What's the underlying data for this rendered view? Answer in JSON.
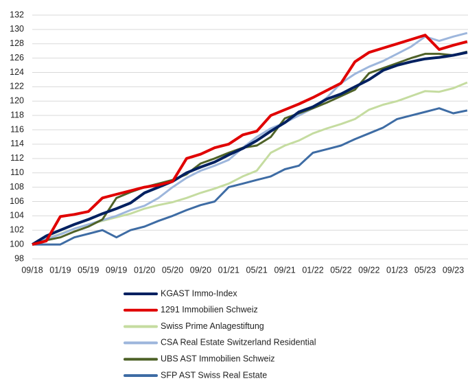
{
  "chart_data": {
    "type": "line",
    "categories": [
      "09/18",
      null,
      "01/19",
      null,
      "05/19",
      null,
      "09/19",
      null,
      "01/20",
      null,
      "05/20",
      null,
      "09/20",
      null,
      "01/21",
      null,
      "05/21",
      null,
      "09/21",
      null,
      "01/22",
      null,
      "05/22",
      null,
      "09/22",
      null,
      "01/23",
      null,
      "05/23",
      null,
      "09/23",
      null
    ],
    "ylim": [
      98,
      132
    ],
    "yticks": [
      98,
      100,
      102,
      104,
      106,
      108,
      110,
      112,
      114,
      116,
      118,
      120,
      122,
      124,
      126,
      128,
      130,
      132
    ],
    "grid": true,
    "legend": "bottom",
    "series": [
      {
        "name": "KGAST Immo-Index",
        "color": "#002060",
        "values": [
          100,
          101.2,
          102,
          102.8,
          103.5,
          104.3,
          105,
          105.8,
          107.2,
          108,
          108.8,
          110,
          110.8,
          111.5,
          112.5,
          113.4,
          114.5,
          115.8,
          117,
          118.5,
          119.2,
          120.3,
          121,
          122,
          123,
          124.3,
          125,
          125.5,
          125.9,
          126.1,
          126.4,
          126.8
        ]
      },
      {
        "name": "1291 Immobilien Schweiz",
        "color": "#e00000",
        "values": [
          100,
          100.5,
          103.9,
          104.2,
          104.6,
          106.5,
          107,
          107.5,
          108,
          108.3,
          108.8,
          112,
          112.6,
          113.5,
          114,
          115.3,
          115.8,
          118,
          118.8,
          119.6,
          120.5,
          121.5,
          122.5,
          125.5,
          126.8,
          127.4,
          128,
          128.6,
          129.2,
          127.2,
          127.8,
          128.3
        ]
      },
      {
        "name": "Swiss Prime Anlagestiftung",
        "color": "#c5dca0",
        "values": [
          100,
          100.8,
          101.5,
          102.2,
          102.8,
          103.3,
          103.8,
          104.3,
          105,
          105.5,
          105.9,
          106.5,
          107.2,
          107.8,
          108.5,
          109.5,
          110.3,
          112.8,
          113.8,
          114.5,
          115.5,
          116.2,
          116.8,
          117.5,
          118.8,
          119.5,
          120,
          120.7,
          121.4,
          121.3,
          121.8,
          122.6
        ]
      },
      {
        "name": "CSA Real Estate Switzerland Residential",
        "color": "#9db6dc",
        "values": [
          100,
          100.8,
          101.4,
          102.2,
          102.8,
          103.4,
          104,
          104.8,
          105.4,
          106.5,
          108,
          109.3,
          110.3,
          111,
          111.8,
          113.5,
          115,
          116.2,
          117,
          118,
          119,
          120.5,
          122.5,
          123.8,
          124.8,
          125.6,
          126.6,
          127.6,
          129,
          128.4,
          129,
          129.5
        ]
      },
      {
        "name": "UBS AST Immobilien Schweiz",
        "color": "#4f6228",
        "values": [
          100,
          100.6,
          101,
          101.8,
          102.5,
          103.5,
          106.5,
          107.3,
          108,
          108.5,
          109,
          109.8,
          111.3,
          112,
          112.8,
          113.5,
          113.8,
          115,
          117.6,
          118.3,
          119,
          119.8,
          120.7,
          121.6,
          123.9,
          124.6,
          125.3,
          126,
          126.6,
          126.6,
          126.4,
          126.9
        ]
      },
      {
        "name": "SFP AST Swiss Real Estate",
        "color": "#3e6ca4",
        "values": [
          100,
          100,
          100,
          101,
          101.5,
          102,
          101,
          102,
          102.5,
          103.3,
          104,
          104.8,
          105.5,
          106,
          108,
          108.5,
          109,
          109.5,
          110.5,
          111,
          112.8,
          113.3,
          113.8,
          114.7,
          115.5,
          116.3,
          117.5,
          118,
          118.5,
          119,
          118.3,
          118.7
        ]
      }
    ]
  }
}
